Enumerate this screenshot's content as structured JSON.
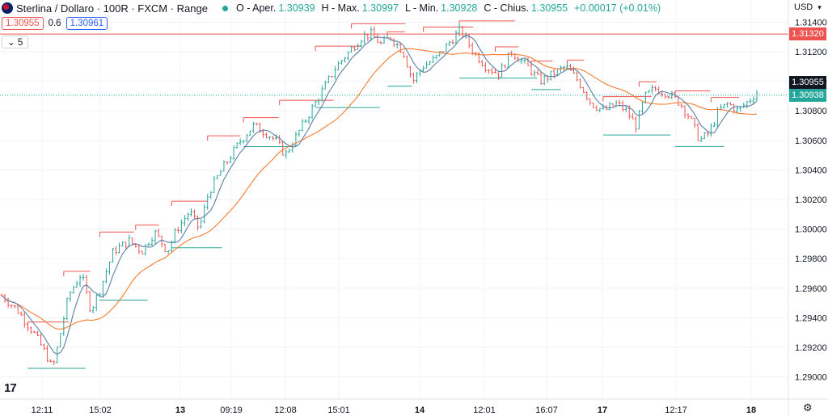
{
  "header": {
    "title": "Sterlina / Dollaro · 100R · FXCM · Range",
    "ohlc": [
      {
        "key": "O",
        "label": "Aper.",
        "value": "1.30939"
      },
      {
        "key": "H",
        "label": "Max.",
        "value": "1.30997"
      },
      {
        "key": "L",
        "label": "Min.",
        "value": "1.30928"
      },
      {
        "key": "C",
        "label": "Chius.",
        "value": "1.30955"
      }
    ],
    "change": "+0.00017 (+0.01%)"
  },
  "trade": {
    "sell": "1.30955",
    "spread": "0.6",
    "buy": "1.30961"
  },
  "indicator_toggle": "5",
  "currency": "USD",
  "price_axis": {
    "labels": [
      "1.31400",
      "1.31200",
      "1.31000",
      "1.30800",
      "1.30600",
      "1.30400",
      "1.30200",
      "1.30000",
      "1.29800",
      "1.29600",
      "1.29400",
      "1.29200",
      "1.29000"
    ],
    "tags": {
      "red_line": "1.31320",
      "last": "1.30955",
      "green": "1.30938"
    }
  },
  "time_axis": [
    "12:11",
    "15:02",
    "13",
    "09:19",
    "12:08",
    "15:01",
    "14",
    "12:01",
    "16:07",
    "17",
    "12:17",
    "18"
  ],
  "colors": {
    "up": "#26a69a",
    "down": "#ef5350",
    "ma_fast": "#5b7fa6",
    "ma_slow": "#f57c2e",
    "grid": "#f0f3fa",
    "hline": "#ef5350"
  },
  "chart_data": {
    "type": "candlestick",
    "symbol": "GBP/USD",
    "ylim": [
      1.2885,
      1.3155
    ],
    "hline": 1.3132,
    "last": 1.30955,
    "bar_count": 232,
    "path_points": [
      [
        0,
        1.2955
      ],
      [
        10,
        1.2945
      ],
      [
        20,
        1.293
      ],
      [
        28,
        1.2915
      ],
      [
        32,
        1.2905
      ],
      [
        36,
        1.2925
      ],
      [
        42,
        1.2955
      ],
      [
        50,
        1.297
      ],
      [
        56,
        1.2945
      ],
      [
        62,
        1.296
      ],
      [
        70,
        1.2985
      ],
      [
        80,
        1.2992
      ],
      [
        88,
        1.2985
      ],
      [
        96,
        1.2998
      ],
      [
        104,
        1.2985
      ],
      [
        110,
        1.3
      ],
      [
        118,
        1.3012
      ],
      [
        124,
        1.3
      ],
      [
        130,
        1.3025
      ],
      [
        138,
        1.304
      ],
      [
        144,
        1.305
      ],
      [
        150,
        1.306
      ],
      [
        158,
        1.307
      ],
      [
        166,
        1.3065
      ],
      [
        172,
        1.306
      ],
      [
        178,
        1.305
      ],
      [
        186,
        1.3065
      ],
      [
        194,
        1.308
      ],
      [
        202,
        1.3095
      ],
      [
        210,
        1.311
      ],
      [
        218,
        1.312
      ],
      [
        226,
        1.313
      ],
      [
        232,
        1.3132
      ],
      [
        238,
        1.3125
      ],
      [
        244,
        1.313
      ],
      [
        252,
        1.312
      ],
      [
        258,
        1.31
      ],
      [
        264,
        1.311
      ],
      [
        272,
        1.3115
      ],
      [
        280,
        1.3125
      ],
      [
        288,
        1.3135
      ],
      [
        296,
        1.312
      ],
      [
        304,
        1.311
      ],
      [
        312,
        1.3105
      ],
      [
        320,
        1.312
      ],
      [
        330,
        1.311
      ],
      [
        338,
        1.31
      ],
      [
        346,
        1.3105
      ],
      [
        354,
        1.311
      ],
      [
        362,
        1.31
      ],
      [
        370,
        1.3085
      ],
      [
        378,
        1.308
      ],
      [
        386,
        1.3085
      ],
      [
        392,
        1.308
      ],
      [
        398,
        1.307
      ],
      [
        404,
        1.309
      ],
      [
        410,
        1.3095
      ],
      [
        418,
        1.3092
      ],
      [
        426,
        1.3085
      ],
      [
        432,
        1.3075
      ],
      [
        438,
        1.306
      ],
      [
        444,
        1.3065
      ],
      [
        450,
        1.308
      ],
      [
        456,
        1.3085
      ],
      [
        462,
        1.308
      ],
      [
        470,
        1.3088
      ],
      [
        476,
        1.3095
      ]
    ]
  }
}
